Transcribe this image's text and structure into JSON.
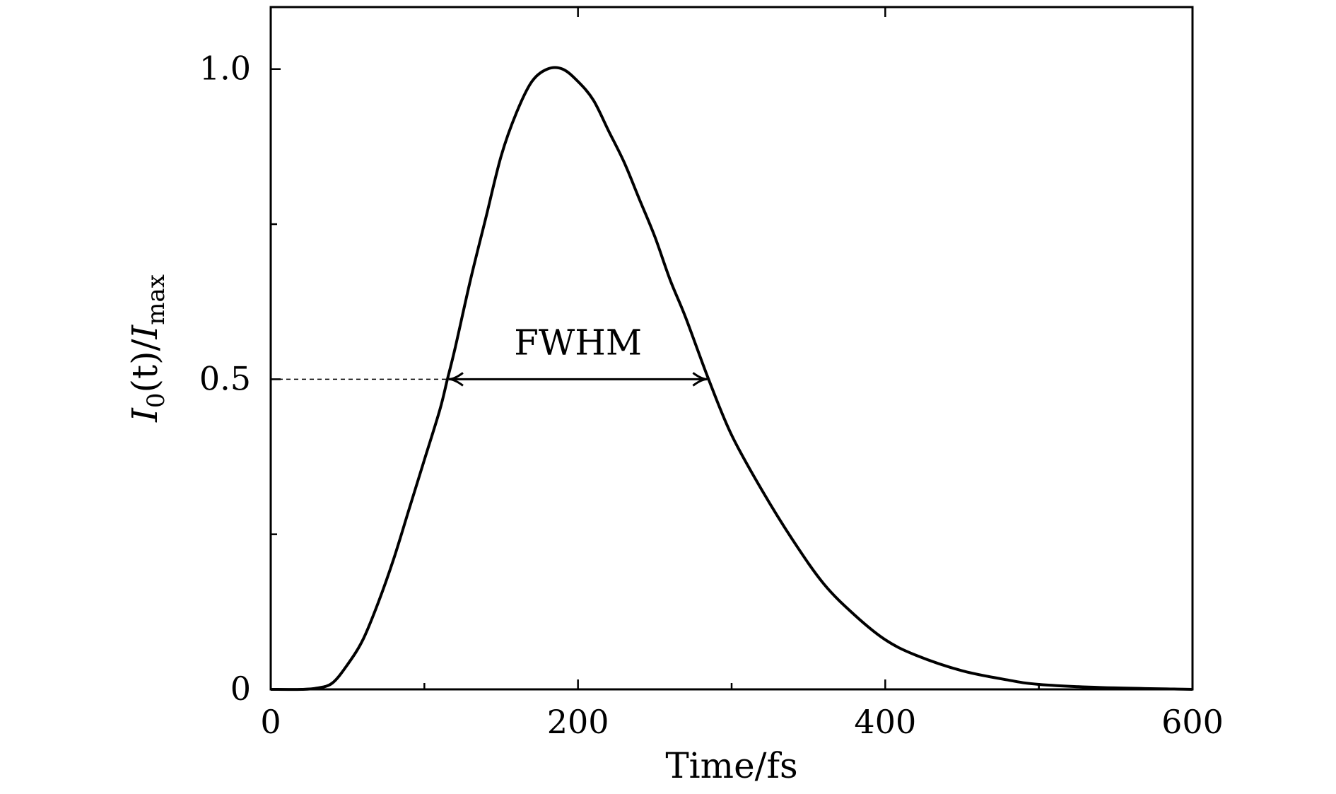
{
  "chart_data": {
    "type": "line",
    "xlabel": "Time/fs",
    "ylabel": {
      "main": "I",
      "sub0": "0",
      "args": "(t)/",
      "main2": "I",
      "sub1": "max"
    },
    "xlim": [
      0,
      600
    ],
    "ylim": [
      0,
      1.1
    ],
    "x_ticks": [
      0,
      200,
      400,
      600
    ],
    "x_tick_labels": [
      "0",
      "200",
      "400",
      "600"
    ],
    "x_minor_ticks": [
      100,
      300,
      500
    ],
    "y_ticks": [
      0,
      0.5,
      1.0
    ],
    "y_tick_labels": [
      "0",
      "0.5",
      "1.0"
    ],
    "y_minor_ticks": [
      0.25,
      0.75
    ],
    "series": [
      {
        "x": [
          0,
          20,
          30,
          40,
          50,
          60,
          70,
          80,
          90,
          100,
          110,
          115,
          120,
          130,
          140,
          150,
          160,
          170,
          180,
          190,
          200,
          210,
          220,
          230,
          240,
          250,
          260,
          270,
          285,
          300,
          320,
          340,
          360,
          380,
          400,
          420,
          450,
          480,
          500,
          540,
          600
        ],
        "y": [
          0.0,
          0.0,
          0.002,
          0.01,
          0.04,
          0.08,
          0.14,
          0.21,
          0.29,
          0.37,
          0.45,
          0.5,
          0.55,
          0.66,
          0.76,
          0.86,
          0.93,
          0.98,
          1.0,
          1.0,
          0.98,
          0.95,
          0.9,
          0.85,
          0.79,
          0.73,
          0.66,
          0.6,
          0.5,
          0.41,
          0.32,
          0.24,
          0.17,
          0.12,
          0.08,
          0.055,
          0.03,
          0.015,
          0.008,
          0.003,
          0.0
        ]
      }
    ],
    "annotations": {
      "fwhm_label": "FWHM",
      "fwhm_level": 0.5,
      "fwhm_x": [
        115,
        285
      ]
    },
    "line_color": "#000000"
  }
}
